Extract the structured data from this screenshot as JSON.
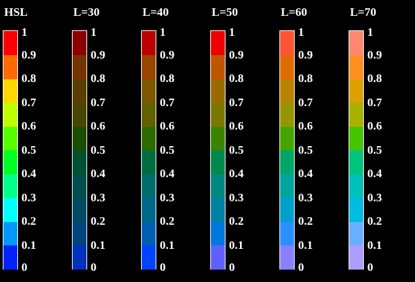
{
  "chart_data": {
    "type": "colorbar",
    "title": "",
    "tick_labels": [
      "0",
      "0.1",
      "0.2",
      "0.3",
      "0.4",
      "0.5",
      "0.6",
      "0.7",
      "0.8",
      "0.9",
      "1"
    ],
    "range": [
      0,
      1
    ],
    "bins": 10,
    "series": [
      {
        "name": "HSL",
        "colors": [
          "#0022ff",
          "#0099ff",
          "#00ffff",
          "#00ff88",
          "#00ff22",
          "#55ff00",
          "#bfff00",
          "#ffd700",
          "#ff6a00",
          "#ff0000"
        ]
      },
      {
        "name": "L=30",
        "colors": [
          "#0033bb",
          "#004484",
          "#004a63",
          "#004f4f",
          "#005230",
          "#1a4f00",
          "#474700",
          "#5c3f00",
          "#773300",
          "#8b0000"
        ]
      },
      {
        "name": "L=40",
        "colors": [
          "#0044ff",
          "#005fb0",
          "#006888",
          "#006c6b",
          "#006d40",
          "#2d6b00",
          "#626100",
          "#7d5800",
          "#9a4400",
          "#bb0000"
        ]
      },
      {
        "name": "L=50",
        "colors": [
          "#6060ff",
          "#0077dd",
          "#0080a5",
          "#008882",
          "#00884d",
          "#3a8500",
          "#7a7800",
          "#9a6a00",
          "#c05500",
          "#ee0000"
        ]
      },
      {
        "name": "L=60",
        "colors": [
          "#8a80ff",
          "#2a8fff",
          "#009fcc",
          "#00a49f",
          "#00a768",
          "#44a500",
          "#969600",
          "#b98400",
          "#e06c00",
          "#ff5533"
        ]
      },
      {
        "name": "L=70",
        "colors": [
          "#ae9eff",
          "#6aaeff",
          "#00bce0",
          "#00c0ba",
          "#00c47c",
          "#44c500",
          "#aab100",
          "#dba100",
          "#ff9020",
          "#ff8870"
        ]
      }
    ]
  }
}
